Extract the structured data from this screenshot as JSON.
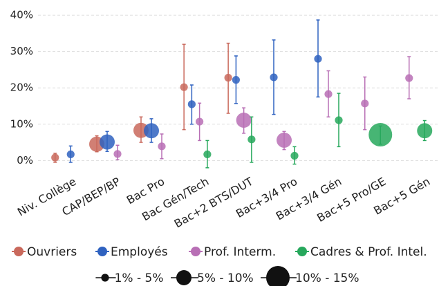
{
  "chart_data": {
    "type": "dotplot",
    "categories": [
      "Niv. Collège",
      "CAP/BEP/BP",
      "Bac Pro",
      "Bac Gén/Tech",
      "Bac+2 BTS/DUT",
      "Bac+3/4 Pro",
      "Bac+3/4 Gén",
      "Bac+5 Pro/GE",
      "Bac+5 Gén"
    ],
    "series": [
      {
        "name": "Ouvriers",
        "color": "#c9695c",
        "values": [
          0.8,
          4.5,
          8.3,
          20.2,
          22.8,
          null,
          null,
          null,
          null
        ],
        "ci_low": [
          -0.5,
          2.4,
          5,
          8.5,
          13,
          null,
          null,
          null,
          null
        ],
        "ci_high": [
          2,
          6.8,
          12,
          32,
          32.3,
          null,
          null,
          null,
          null
        ],
        "sizes": [
          3,
          7.5,
          7.5,
          3,
          3,
          null,
          null,
          null,
          null
        ]
      },
      {
        "name": "Employés",
        "color": "#2f62c0",
        "values": [
          1.7,
          5.1,
          8.2,
          15.5,
          22.2,
          22.9,
          28,
          null,
          null
        ],
        "ci_low": [
          -0.5,
          2.5,
          5,
          10,
          15.7,
          12.7,
          17.5,
          null,
          null
        ],
        "ci_high": [
          4,
          8,
          11.5,
          20.8,
          28.8,
          33.2,
          38.7,
          null,
          null
        ],
        "sizes": [
          3,
          7.5,
          7.5,
          3,
          3,
          3,
          3,
          null,
          null
        ]
      },
      {
        "name": "Prof. Interm.",
        "color": "#b86fb5",
        "values": [
          null,
          1.8,
          3.9,
          10.7,
          11.1,
          5.6,
          18.3,
          15.7,
          22.7
        ],
        "ci_low": [
          null,
          0.2,
          0.5,
          5.5,
          7.5,
          3,
          12,
          8.5,
          17
        ],
        "ci_high": [
          null,
          4.2,
          7.3,
          15.8,
          14.5,
          8,
          24.7,
          23,
          28.6
        ],
        "sizes": [
          null,
          3,
          3,
          3,
          7.5,
          7.5,
          3,
          3,
          3
        ]
      },
      {
        "name": "Cadres & Prof. Intel.",
        "color": "#27a85c",
        "values": [
          null,
          null,
          null,
          1.7,
          5.8,
          1.3,
          11.1,
          7.1,
          8.2
        ],
        "ci_low": [
          null,
          null,
          null,
          -2,
          -0.5,
          -1,
          3.8,
          4.5,
          5.5
        ],
        "ci_high": [
          null,
          null,
          null,
          5.5,
          12,
          3.8,
          18.5,
          9.5,
          11
        ],
        "sizes": [
          null,
          null,
          null,
          3,
          3,
          3,
          3,
          12.5,
          7.5
        ]
      }
    ],
    "size_legend": [
      {
        "label": "1% - 5%",
        "min": 1,
        "max": 5
      },
      {
        "label": "5% - 10%",
        "min": 5,
        "max": 10
      },
      {
        "label": "10% - 15%",
        "min": 10,
        "max": 15
      }
    ],
    "ylim": [
      -2.6,
      40.4
    ],
    "yticks": [
      {
        "value": 0,
        "label": "0%"
      },
      {
        "value": 10,
        "label": "10%"
      },
      {
        "value": 20,
        "label": "20%"
      },
      {
        "value": 30,
        "label": "30%"
      },
      {
        "value": 40,
        "label": "40%"
      }
    ],
    "grid": true
  }
}
